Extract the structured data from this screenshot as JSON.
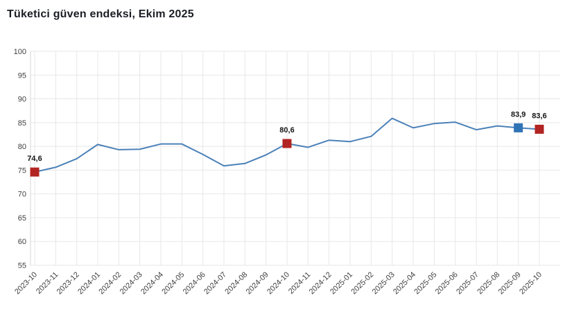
{
  "chart_data": {
    "type": "line",
    "title": "Tüketici güven endeksi, Ekim 2025",
    "categories": [
      "2023-10",
      "2023-11",
      "2023-12",
      "2024-01",
      "2024-02",
      "2024-03",
      "2024-04",
      "2024-05",
      "2024-06",
      "2024-07",
      "2024-08",
      "2024-09",
      "2024-10",
      "2024-11",
      "2024-12",
      "2025-01",
      "2025-02",
      "2025-03",
      "2025-04",
      "2025-05",
      "2025-06",
      "2025-07",
      "2025-08",
      "2025-09",
      "2025-10"
    ],
    "values": [
      74.6,
      75.6,
      77.4,
      80.4,
      79.3,
      79.4,
      80.5,
      80.5,
      78.3,
      75.9,
      76.4,
      78.2,
      80.6,
      79.8,
      81.3,
      81.0,
      82.1,
      85.9,
      83.9,
      84.8,
      85.1,
      83.5,
      84.3,
      83.9,
      83.6
    ],
    "ylim": [
      55,
      100
    ],
    "ytick_step": 5,
    "ytick_labels": [
      "100",
      "95",
      "90",
      "85",
      "80",
      "75",
      "70",
      "65",
      "60",
      "55"
    ],
    "grid": "on",
    "legend": "none",
    "xlabel": "",
    "ylabel": "",
    "annotated_points": [
      {
        "category": "2023-10",
        "index": 0,
        "label": "74,6",
        "marker_color": "#b22421"
      },
      {
        "category": "2024-10",
        "index": 12,
        "label": "80,6",
        "marker_color": "#b22421"
      },
      {
        "category": "2025-09",
        "index": 23,
        "label": "83,9",
        "marker_color": "#2f74b5"
      },
      {
        "category": "2025-10",
        "index": 24,
        "label": "83,6",
        "marker_color": "#b22421"
      }
    ],
    "colors": {
      "line": "#4b81b8",
      "marker_red": "#b22421",
      "marker_blue": "#2f74b5",
      "grid": "#e7e7e7",
      "axis": "#d6d6d6",
      "tick_text": "#404040",
      "title_text": "#1a1d24",
      "data_label_text": "#141414"
    }
  }
}
